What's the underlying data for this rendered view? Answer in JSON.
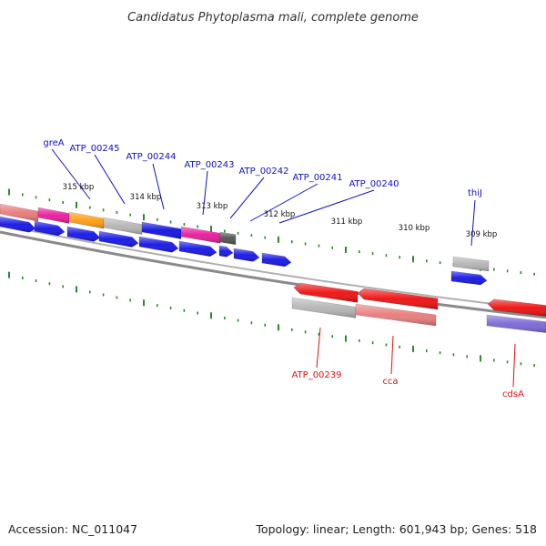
{
  "title": "Candidatus Phytoplasma mali, complete genome",
  "footer": {
    "accession": "Accession: NC_011047",
    "summary": "Topology: linear; Length: 601,943 bp; Genes: 518"
  },
  "colors": {
    "label_forward": "#1010c8",
    "label_reverse": "#dd1111",
    "tick": "#2a8a2a",
    "backbone": "#8a8a8a"
  },
  "scale": {
    "unit": "kbp",
    "labels": [
      "315 kbp",
      "314 kbp",
      "313 kbp",
      "312 kbp",
      "311 kbp",
      "310 kbp",
      "309 kbp"
    ]
  },
  "gene_labels_forward": [
    "greA",
    "ATP_00245",
    "ATP_00244",
    "ATP_00243",
    "ATP_00242",
    "ATP_00241",
    "ATP_00240",
    "thiJ"
  ],
  "gene_labels_reverse": [
    "ATP_00239",
    "cca",
    "cdsA"
  ],
  "features": {
    "forward_cog": [
      "#e87a7a",
      "#e8199a",
      "#ff9c10",
      "#b4b4b4",
      "#1010e0",
      "#e8199a",
      "#505050",
      "#b4b4b4"
    ],
    "forward_genes": "#1414e6",
    "reverse_genes": "#ee0e0e",
    "reverse_cog": [
      "#b4b4b4",
      "#e87a7a",
      "#7a66d6"
    ]
  }
}
